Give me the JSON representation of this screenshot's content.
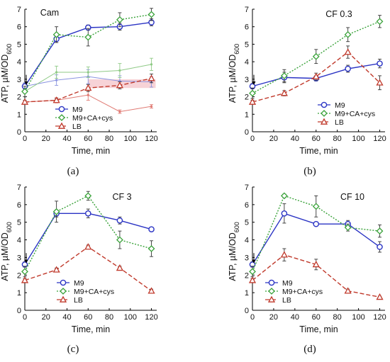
{
  "figure": {
    "panel_labels": [
      "(a)",
      "(b)",
      "(c)",
      "(d)"
    ]
  },
  "colors": {
    "M9": "#2b34c4",
    "M9+CA+cys": "#3aa23a",
    "LB": "#c0392b",
    "faint_blue": "#8a93e0",
    "faint_green": "#8fca86",
    "faint_red": "#e07a73",
    "shade": "#f5c8cd"
  },
  "chart_data": [
    {
      "type": "line",
      "title": "Cam",
      "xlabel": "Time, min",
      "ylabel": "ATP, µM/OD600",
      "xlim": [
        0,
        125
      ],
      "ylim": [
        0,
        7
      ],
      "xticks": [
        0,
        20,
        40,
        60,
        80,
        100,
        120
      ],
      "yticks": [
        0,
        1,
        2,
        3,
        4,
        5,
        6,
        7
      ],
      "legend": "bottom-right",
      "series": [
        {
          "name": "M9",
          "x": [
            0,
            30,
            60,
            90,
            120
          ],
          "values": [
            2.6,
            5.3,
            5.95,
            6.0,
            6.25
          ],
          "err": [
            0.15,
            0.2,
            0.15,
            0.2,
            0.2
          ]
        },
        {
          "name": "M9+CA+cys",
          "x": [
            0,
            30,
            60,
            90,
            120
          ],
          "values": [
            2.3,
            5.55,
            5.4,
            6.4,
            6.7
          ],
          "err": [
            0.3,
            0.45,
            0.5,
            0.4,
            0.35
          ]
        },
        {
          "name": "LB",
          "x": [
            0,
            30,
            60,
            90,
            120
          ],
          "values": [
            1.7,
            1.8,
            2.5,
            2.65,
            3.05
          ],
          "err": [
            0.1,
            0.1,
            0.2,
            0.2,
            0.25
          ]
        },
        {
          "name": "",
          "x": [
            0,
            30,
            60,
            90,
            120
          ],
          "values": [
            2.6,
            2.95,
            3.15,
            2.9,
            2.85
          ],
          "err": [
            0.2,
            0.3,
            0.4,
            0.3,
            0.3
          ]
        },
        {
          "name": "",
          "x": [
            0,
            30,
            60,
            90,
            120
          ],
          "values": [
            2.3,
            3.4,
            3.4,
            3.5,
            3.85
          ],
          "err": [
            0.3,
            0.35,
            0.3,
            0.4,
            0.35
          ]
        },
        {
          "name": "",
          "x": [
            0,
            30,
            60,
            90,
            120
          ],
          "values": [
            1.7,
            1.8,
            2.1,
            1.15,
            1.45
          ],
          "err": [
            0.1,
            0.15,
            0.3,
            0.1,
            0.1
          ]
        }
      ],
      "annotations": [
        "arrow at t=0"
      ]
    },
    {
      "type": "line",
      "title": "CF 0.3",
      "xlabel": "Time, min",
      "ylabel": "ATP, µM/OD600",
      "xlim": [
        0,
        125
      ],
      "ylim": [
        0,
        7
      ],
      "xticks": [
        0,
        20,
        40,
        60,
        80,
        100,
        120
      ],
      "yticks": [
        0,
        1,
        2,
        3,
        4,
        5,
        6,
        7
      ],
      "legend": "bottom-right",
      "series": [
        {
          "name": "M9",
          "x": [
            0,
            30,
            60,
            90,
            120
          ],
          "values": [
            2.6,
            3.1,
            3.05,
            3.6,
            3.9
          ],
          "err": [
            0.15,
            0.3,
            0.15,
            0.2,
            0.25
          ]
        },
        {
          "name": "M9+CA+cys",
          "x": [
            0,
            30,
            60,
            90,
            120
          ],
          "values": [
            2.2,
            3.2,
            4.3,
            5.55,
            6.3
          ],
          "err": [
            0.3,
            0.35,
            0.4,
            0.4,
            0.35
          ]
        },
        {
          "name": "LB",
          "x": [
            0,
            30,
            60,
            90,
            120
          ],
          "values": [
            1.7,
            2.2,
            3.15,
            4.55,
            2.8
          ],
          "err": [
            0.1,
            0.15,
            0.2,
            0.35,
            0.4
          ]
        }
      ],
      "annotations": [
        "arrow at t=0"
      ]
    },
    {
      "type": "line",
      "title": "CF 3",
      "xlabel": "Time, min",
      "ylabel": "ATP, µM/OD600",
      "xlim": [
        0,
        125
      ],
      "ylim": [
        0,
        7
      ],
      "xticks": [
        0,
        20,
        40,
        60,
        80,
        100,
        120
      ],
      "yticks": [
        0,
        1,
        2,
        3,
        4,
        5,
        6,
        7
      ],
      "legend": "bottom-right",
      "series": [
        {
          "name": "M9",
          "x": [
            0,
            30,
            60,
            90,
            120
          ],
          "values": [
            2.6,
            5.5,
            5.5,
            5.1,
            4.6
          ],
          "err": [
            0.15,
            0.2,
            0.25,
            0.2,
            0.1
          ]
        },
        {
          "name": "M9+CA+cys",
          "x": [
            0,
            30,
            60,
            90,
            120
          ],
          "values": [
            2.2,
            5.6,
            6.5,
            4.0,
            3.5
          ],
          "err": [
            0.3,
            0.6,
            0.25,
            0.5,
            0.45
          ]
        },
        {
          "name": "LB",
          "x": [
            0,
            30,
            60,
            90,
            120
          ],
          "values": [
            1.7,
            2.3,
            3.6,
            2.4,
            1.1
          ],
          "err": [
            0.1,
            0.1,
            0.1,
            0.1,
            0.1
          ]
        }
      ],
      "annotations": [
        "arrow at t=0"
      ]
    },
    {
      "type": "line",
      "title": "CF 10",
      "xlabel": "Time, min",
      "ylabel": "ATP, µM/OD600",
      "xlim": [
        0,
        125
      ],
      "ylim": [
        0,
        7
      ],
      "xticks": [
        0,
        20,
        40,
        60,
        80,
        100,
        120
      ],
      "yticks": [
        0,
        1,
        2,
        3,
        4,
        5,
        6,
        7
      ],
      "legend": "bottom-left",
      "series": [
        {
          "name": "M9",
          "x": [
            0,
            30,
            60,
            90,
            120
          ],
          "values": [
            2.6,
            5.5,
            4.9,
            4.9,
            3.6
          ],
          "err": [
            0.15,
            0.55,
            0.1,
            0.2,
            0.3
          ]
        },
        {
          "name": "M9+CA+cys",
          "x": [
            0,
            30,
            60,
            90,
            120
          ],
          "values": [
            2.2,
            6.5,
            5.9,
            4.7,
            4.5
          ],
          "err": [
            0.3,
            0.1,
            0.6,
            0.2,
            0.35
          ]
        },
        {
          "name": "LB",
          "x": [
            0,
            30,
            60,
            90,
            120
          ],
          "values": [
            1.7,
            3.15,
            2.6,
            1.1,
            0.75
          ],
          "err": [
            0.1,
            0.35,
            0.3,
            0.1,
            0.05
          ]
        }
      ],
      "annotations": [
        "arrow at t=0"
      ]
    }
  ]
}
